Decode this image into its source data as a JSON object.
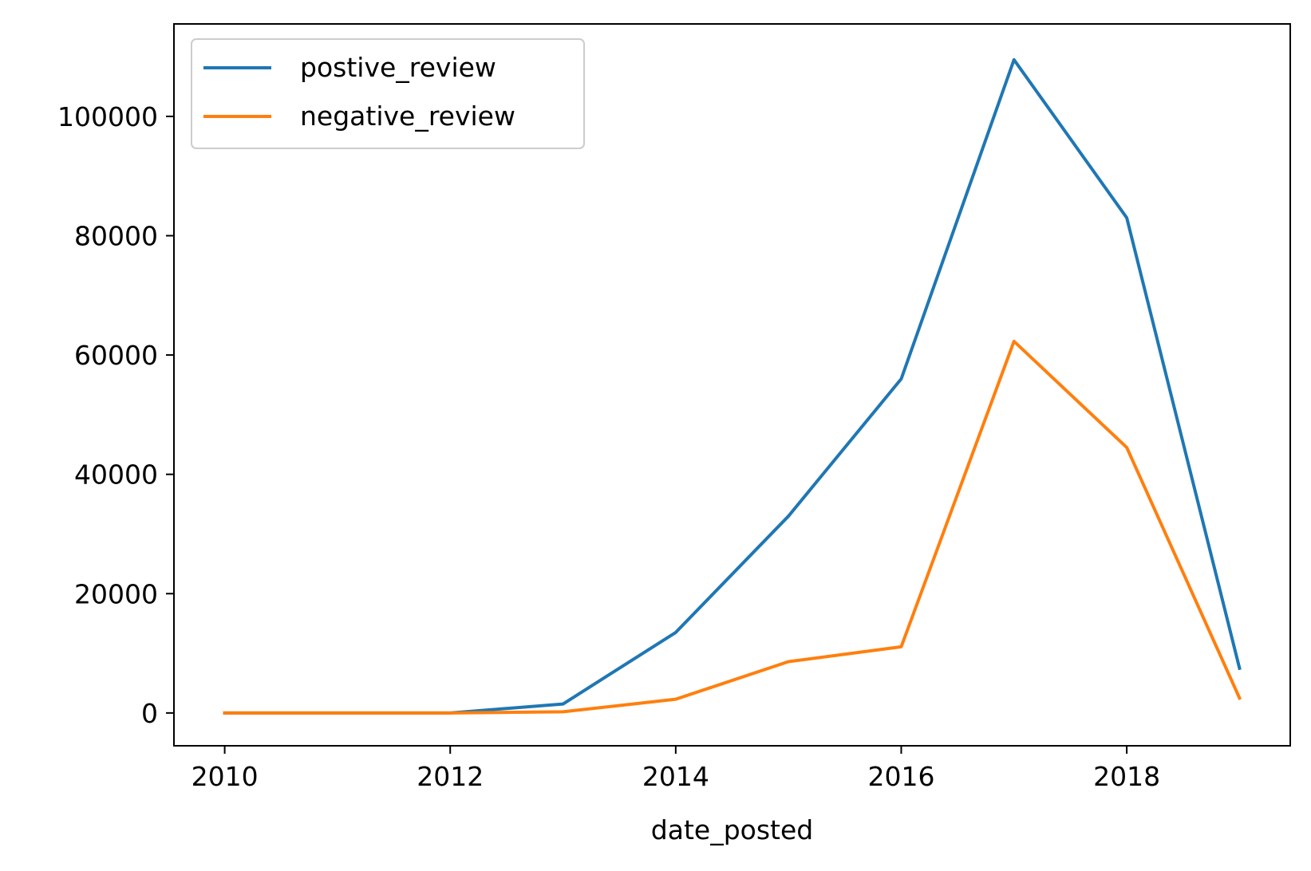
{
  "chart_data": {
    "type": "line",
    "title": "",
    "xlabel": "date_posted",
    "ylabel": "",
    "x": [
      2010,
      2011,
      2012,
      2013,
      2014,
      2015,
      2016,
      2017,
      2018,
      2019
    ],
    "xlim": [
      2009.55,
      2019.45
    ],
    "ylim": [
      -5500,
      115500
    ],
    "xticks": [
      2010,
      2012,
      2014,
      2016,
      2018
    ],
    "xtick_labels": [
      "2010",
      "2012",
      "2014",
      "2016",
      "2018"
    ],
    "yticks": [
      0,
      20000,
      40000,
      60000,
      80000,
      100000
    ],
    "ytick_labels": [
      "0",
      "20000",
      "40000",
      "60000",
      "80000",
      "100000"
    ],
    "grid": false,
    "legend_position": "top-left",
    "series": [
      {
        "name": "postive_review",
        "color": "#1f77b4",
        "values": [
          0,
          0,
          0,
          1500,
          13500,
          33000,
          56000,
          109500,
          83000,
          7500
        ]
      },
      {
        "name": "negative_review",
        "color": "#ff7f0e",
        "values": [
          0,
          0,
          0,
          200,
          2300,
          8600,
          11100,
          62300,
          44500,
          2500
        ]
      }
    ]
  }
}
